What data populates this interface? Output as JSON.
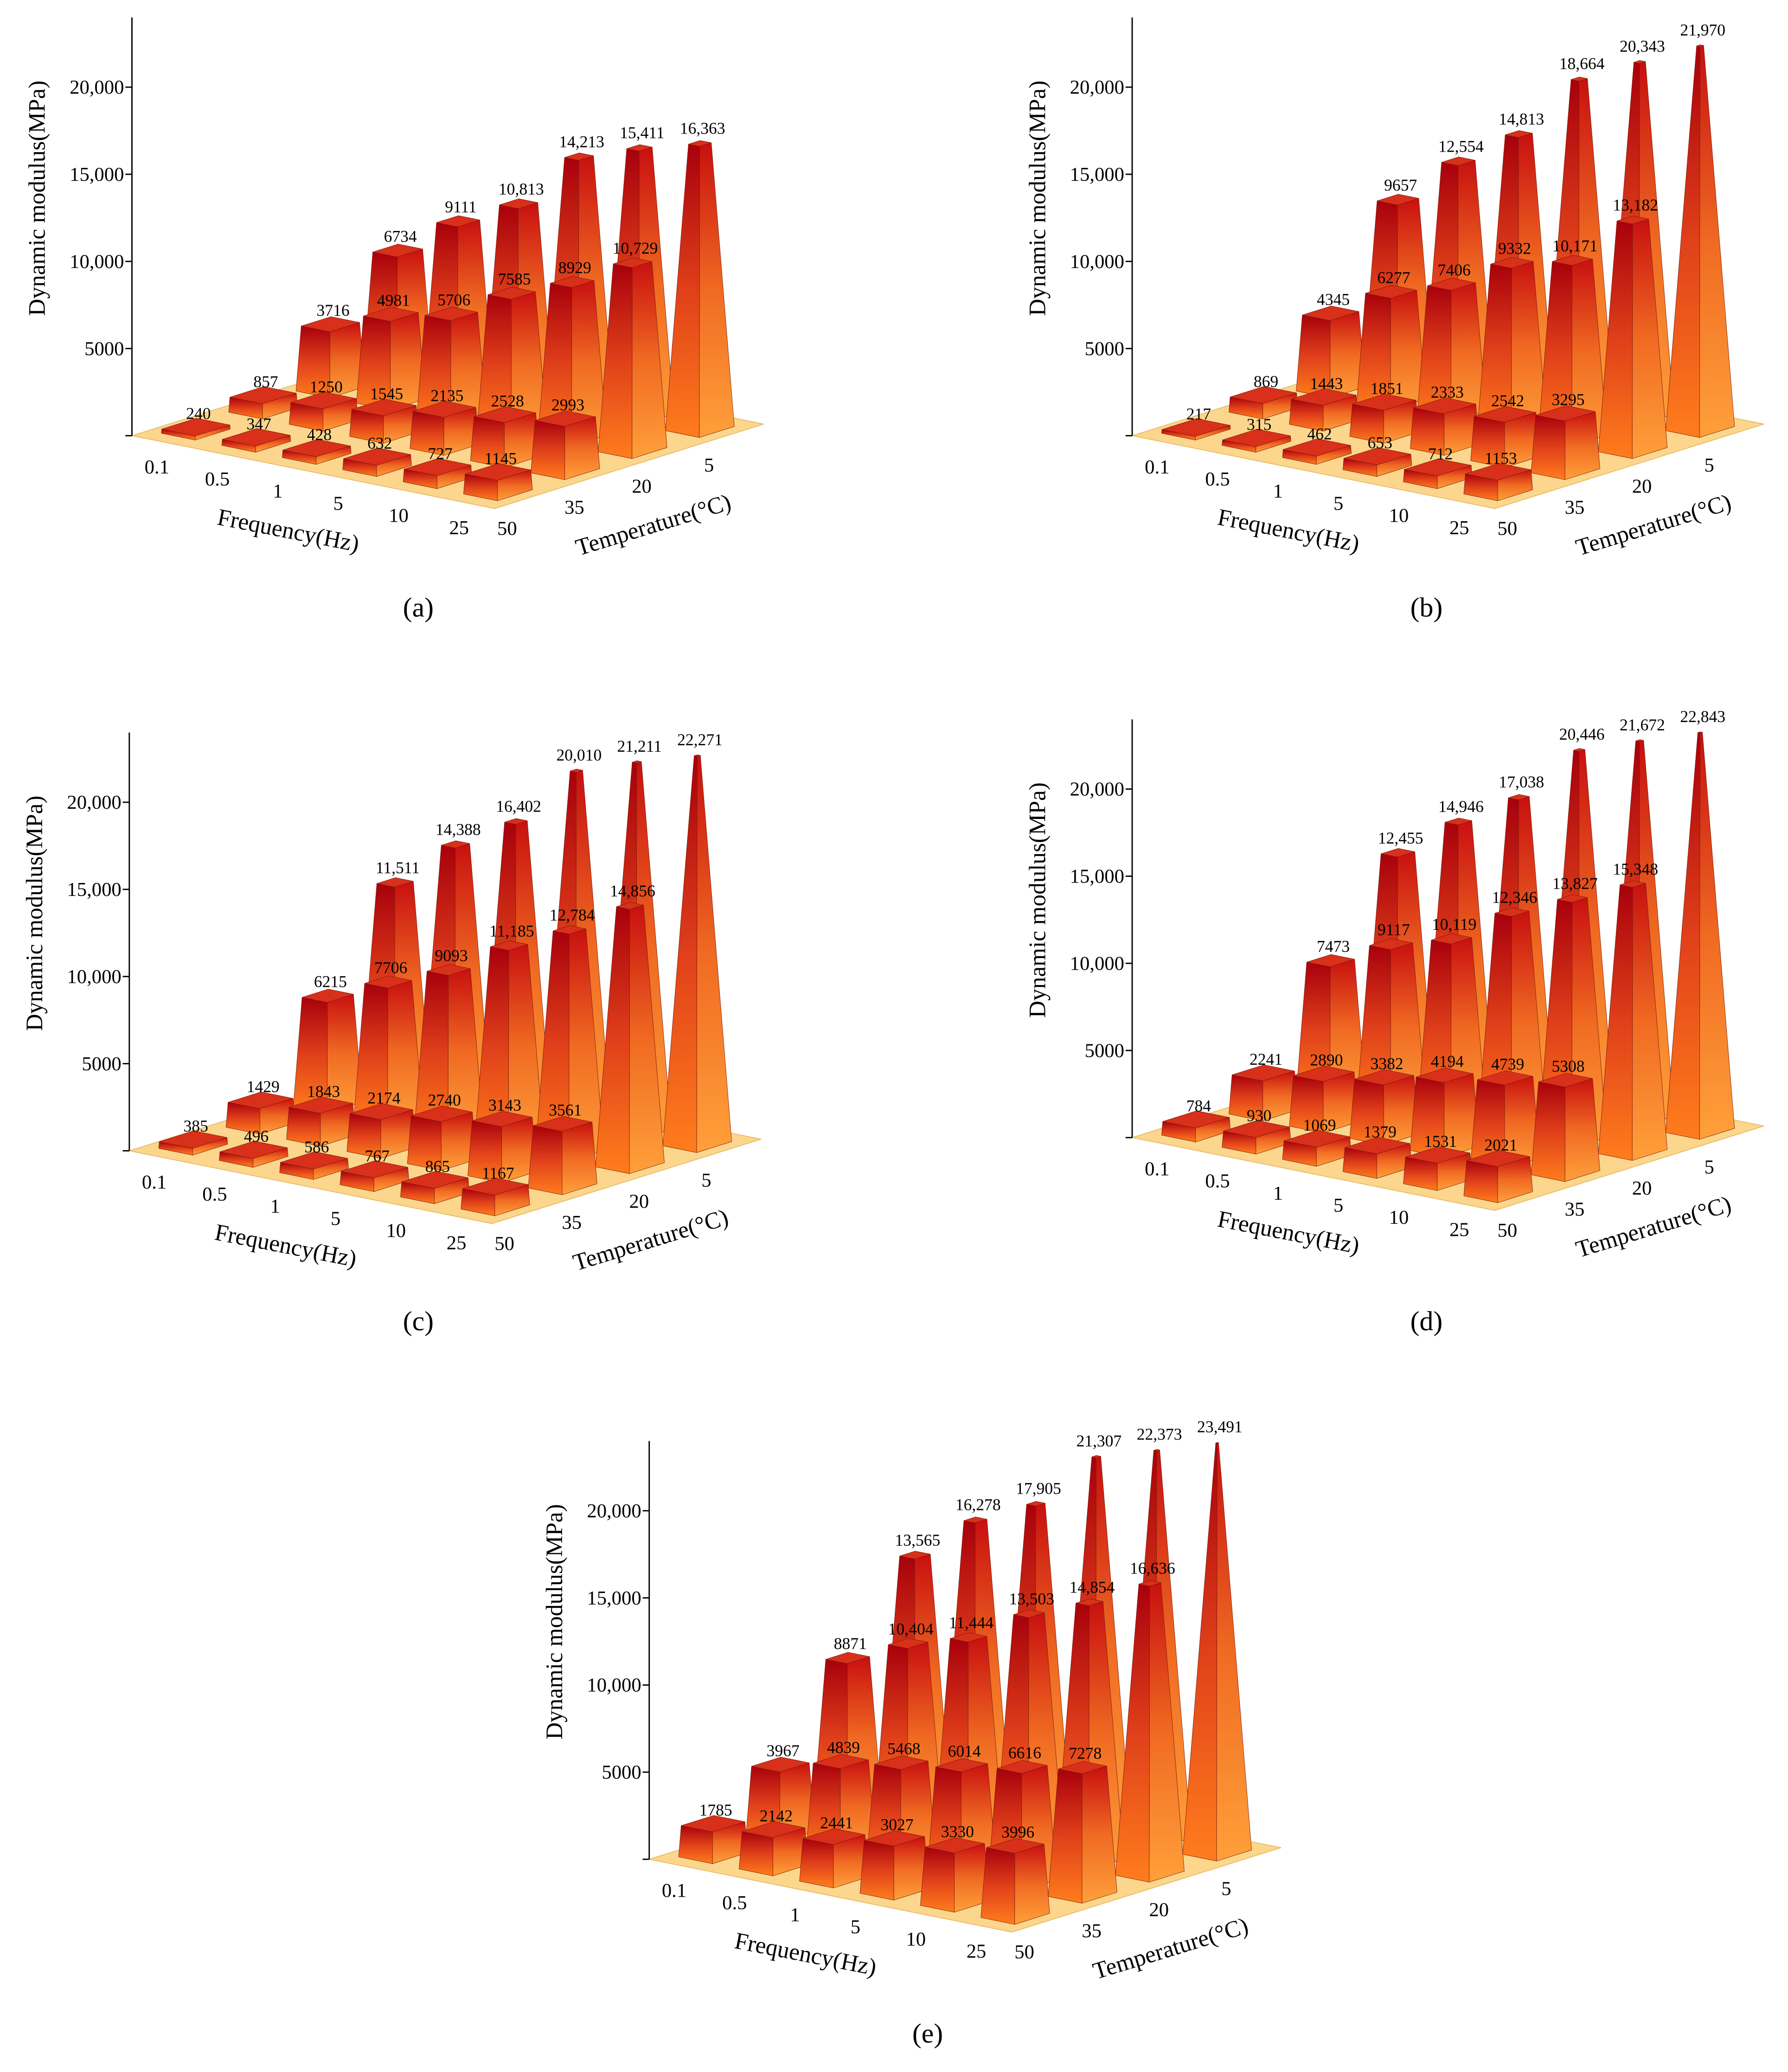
{
  "chart_data": [
    {
      "type": "bar3d",
      "caption": "(a)",
      "ylabel": "Dynamic modulus(MPa)",
      "xlabel": "Frequency(Hz)",
      "zlabel": "Temperature(°C)",
      "categories": [
        "0.1",
        "0.5",
        "1",
        "5",
        "10",
        "25"
      ],
      "series": [
        {
          "name": "50",
          "values": [
            240,
            347,
            428,
            632,
            727,
            1145
          ],
          "value_labels": [
            "240",
            "347",
            "428",
            "632",
            "727",
            "1145"
          ]
        },
        {
          "name": "35",
          "values": [
            857,
            1250,
            1545,
            2135,
            2528,
            2993
          ],
          "value_labels": [
            "857",
            "1250",
            "1545",
            "2135",
            "2528",
            "2993"
          ]
        },
        {
          "name": "20",
          "values": [
            3716,
            4981,
            5706,
            7585,
            8929,
            10729
          ],
          "value_labels": [
            "3716",
            "4981",
            "5706",
            "7585",
            "8929",
            "10,729"
          ]
        },
        {
          "name": "5",
          "values": [
            6734,
            9111,
            10813,
            14213,
            15411,
            16363
          ],
          "value_labels": [
            "6734",
            "9111",
            "10,813",
            "14,213",
            "15,411",
            "16,363"
          ]
        }
      ],
      "ylim": [
        0,
        24000
      ],
      "yticks": [
        5000,
        {
          "value": 10000,
          "label": "10,000"
        },
        {
          "value": 15000,
          "label": "15,000"
        },
        {
          "value": 20000,
          "label": "20,000"
        }
      ]
    },
    {
      "type": "bar3d",
      "caption": "(b)",
      "ylabel": "Dynamic modulus(MPa)",
      "xlabel": "Frequency(Hz)",
      "zlabel": "Temperature(°C)",
      "categories": [
        "0.1",
        "0.5",
        "1",
        "5",
        "10",
        "25"
      ],
      "series": [
        {
          "name": "50",
          "values": [
            217,
            315,
            462,
            653,
            712,
            1153
          ],
          "value_labels": [
            "217",
            "315",
            "462",
            "653",
            "712",
            "1153"
          ]
        },
        {
          "name": "35",
          "values": [
            869,
            1443,
            1851,
            2333,
            2542,
            3295
          ],
          "value_labels": [
            "869",
            "1443",
            "1851",
            "2333",
            "2542",
            "3295"
          ]
        },
        {
          "name": "20",
          "values": [
            4345,
            6277,
            7406,
            9332,
            10171,
            13182
          ],
          "value_labels": [
            "4345",
            "6277",
            "7406",
            "9332",
            "10,171",
            "13,182"
          ]
        },
        {
          "name": "5",
          "values": [
            9657,
            12554,
            14813,
            18664,
            20343,
            21970
          ],
          "value_labels": [
            "9657",
            "12,554",
            "14,813",
            "18,664",
            "20,343",
            "21,970"
          ]
        }
      ],
      "ylim": [
        0,
        24000
      ],
      "yticks": [
        5000,
        {
          "value": 10000,
          "label": "10,000"
        },
        {
          "value": 15000,
          "label": "15,000"
        },
        {
          "value": 20000,
          "label": "20,000"
        }
      ]
    },
    {
      "type": "bar3d",
      "caption": "(c)",
      "ylabel": "Dynamic modulus(MPa)",
      "xlabel": "Frequency(Hz)",
      "zlabel": "Temperature(°C)",
      "categories": [
        "0.1",
        "0.5",
        "1",
        "5",
        "10",
        "25"
      ],
      "series": [
        {
          "name": "50",
          "values": [
            385,
            496,
            586,
            767,
            865,
            1167
          ],
          "value_labels": [
            "385",
            "496",
            "586",
            "767",
            "865",
            "1167"
          ]
        },
        {
          "name": "35",
          "values": [
            1429,
            1843,
            2174,
            2740,
            3143,
            3561
          ],
          "value_labels": [
            "1429",
            "1843",
            "2174",
            "2740",
            "3143",
            "3561"
          ]
        },
        {
          "name": "20",
          "values": [
            6215,
            7706,
            9093,
            11185,
            12784,
            14856
          ],
          "value_labels": [
            "6215",
            "7706",
            "9093",
            "11,185",
            "12,784",
            "14,856"
          ]
        },
        {
          "name": "5",
          "values": [
            11511,
            14388,
            16402,
            20010,
            21211,
            22271
          ],
          "value_labels": [
            "11,511",
            "14,388",
            "16,402",
            "20,010",
            "21,211",
            "22,271"
          ]
        }
      ],
      "ylim": [
        0,
        24000
      ],
      "yticks": [
        5000,
        {
          "value": 10000,
          "label": "10,000"
        },
        {
          "value": 15000,
          "label": "15,000"
        },
        {
          "value": 20000,
          "label": "20,000"
        }
      ]
    },
    {
      "type": "bar3d",
      "caption": "(d)",
      "ylabel": "Dynamic modulus(MPa)",
      "xlabel": "Frequency(Hz)",
      "zlabel": "Temperature(°C)",
      "categories": [
        "0.1",
        "0.5",
        "1",
        "5",
        "10",
        "25"
      ],
      "series": [
        {
          "name": "50",
          "values": [
            784,
            930,
            1069,
            1379,
            1531,
            2021
          ],
          "value_labels": [
            "784",
            "930",
            "1069",
            "1379",
            "1531",
            "2021"
          ]
        },
        {
          "name": "35",
          "values": [
            2241,
            2890,
            3382,
            4194,
            4739,
            5308
          ],
          "value_labels": [
            "2241",
            "2890",
            "3382",
            "4194",
            "4739",
            "5308"
          ]
        },
        {
          "name": "20",
          "values": [
            7473,
            9117,
            10119,
            12346,
            13827,
            15348
          ],
          "value_labels": [
            "7473",
            "9117",
            "10,119",
            "12,346",
            "13,827",
            "15,348"
          ]
        },
        {
          "name": "5",
          "values": [
            12455,
            14946,
            17038,
            20446,
            21672,
            22843
          ],
          "value_labels": [
            "12,455",
            "14,946",
            "17,038",
            "20,446",
            "21,672",
            "22,843"
          ]
        }
      ],
      "ylim": [
        0,
        24000
      ],
      "yticks": [
        5000,
        {
          "value": 10000,
          "label": "10,000"
        },
        {
          "value": 15000,
          "label": "15,000"
        },
        {
          "value": 20000,
          "label": "20,000"
        }
      ]
    },
    {
      "type": "bar3d",
      "caption": "(e)",
      "ylabel": "Dynamic modulus(MPa)",
      "xlabel": "Frequency(Hz)",
      "zlabel": "Temperature(°C)",
      "categories": [
        "0.1",
        "0.5",
        "1",
        "5",
        "10",
        "25"
      ],
      "series": [
        {
          "name": "50",
          "values": [
            1785,
            2142,
            2441,
            3027,
            3330,
            3996
          ],
          "value_labels": [
            "1785",
            "2142",
            "2441",
            "3027",
            "3330",
            "3996"
          ]
        },
        {
          "name": "35",
          "values": [
            3967,
            4839,
            5468,
            6014,
            6616,
            7278
          ],
          "value_labels": [
            "3967",
            "4839",
            "5468",
            "6014",
            "6616",
            "7278"
          ]
        },
        {
          "name": "20",
          "values": [
            8871,
            10404,
            11444,
            13503,
            14854,
            16636
          ],
          "value_labels": [
            "8871",
            "10,404",
            "11,444",
            "13,503",
            "14,854",
            "16,636"
          ]
        },
        {
          "name": "5",
          "values": [
            13565,
            16278,
            17905,
            21307,
            22373,
            23491
          ],
          "value_labels": [
            "13,565",
            "16,278",
            "17,905",
            "21,307",
            "22,373",
            "23,491"
          ]
        }
      ],
      "ylim": [
        0,
        24000
      ],
      "yticks": [
        5000,
        {
          "value": 10000,
          "label": "10,000"
        },
        {
          "value": 15000,
          "label": "15,000"
        },
        {
          "value": 20000,
          "label": "20,000"
        }
      ]
    }
  ]
}
